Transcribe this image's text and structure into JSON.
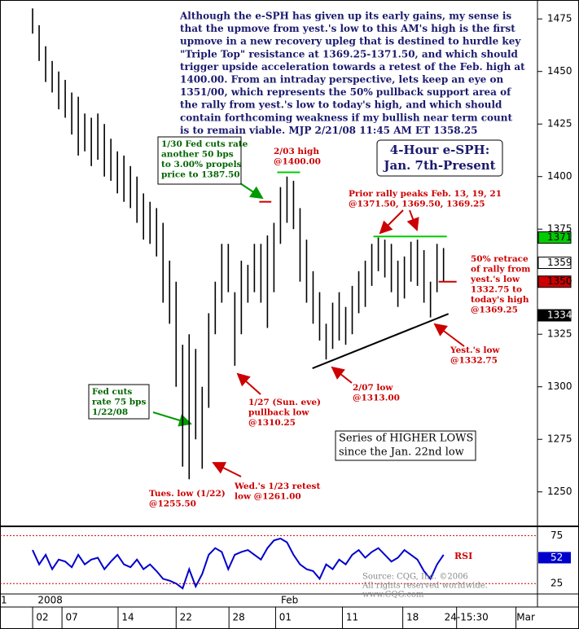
{
  "title_box": [
    "4-Hour e-SPH:",
    "Jan. 7th-Present"
  ],
  "commentary": [
    "Although the e-SPH has given up its early gains, my sense is",
    "that the upmove from yest.'s low to this AM's high is the first",
    "upmove in a new recovery upleg that is destined to hurdle key",
    "\"Triple Top\" resistance at 1369.25-1371.50, and which should",
    "trigger upside acceleration towards a retest of the Feb. high at",
    "1400.00. From an intraday perspective, lets keep an eye on",
    "1351/00, which represents the 50% pullback support area of",
    "the rally from yest.'s low to today's high, and which should",
    "contain forthcoming weakness if my bullish near term count",
    "is to remain viable.  MJP  2/21/08 11:45 AM ET 1358.25"
  ],
  "annotations": [
    {
      "color": "#006600",
      "lines": [
        "1/30 Fed cuts rate",
        "another 50 bps",
        "to 3.00% propels",
        "price to 1387.50"
      ]
    },
    {
      "color": "#cc0000",
      "lines": [
        "2/03 high",
        "@1400.00"
      ]
    },
    {
      "color": "#cc0000",
      "lines": [
        "Prior rally peaks Feb. 13, 19, 21",
        "@1371.50, 1369.50, 1369.25"
      ]
    },
    {
      "color": "#cc0000",
      "lines": [
        "50% retrace",
        "of rally from",
        "yest.'s low",
        "1332.75 to",
        "today's high",
        "@1369.25"
      ]
    },
    {
      "color": "#cc0000",
      "lines": [
        "Yest.'s low",
        "@1332.75"
      ]
    },
    {
      "color": "#cc0000",
      "lines": [
        "2/07 low",
        "@1313.00"
      ]
    },
    {
      "color": "#cc0000",
      "lines": [
        "1/27 (Sun. eve)",
        "pullback low",
        "@1310.25"
      ]
    },
    {
      "color": "#006600",
      "lines": [
        "Fed cuts",
        "rate 75 bps",
        "1/22/08"
      ]
    },
    {
      "color": "#cc0000",
      "lines": [
        "Wed.'s 1/23 retest",
        "low @1261.00"
      ]
    },
    {
      "color": "#cc0000",
      "lines": [
        "Tues. low (1/22)",
        "@1255.50"
      ]
    },
    {
      "color": "#000000",
      "lines": [
        "Series of HIGHER LOWS",
        "since the Jan. 22nd low"
      ]
    }
  ],
  "copyright": [
    "Source: CQG, Inc. ©2006",
    "All rights reserved worldwide.",
    "www.CQG.com"
  ],
  "chart_data": {
    "type": "hilo",
    "color": "#000000",
    "high": [
      1480,
      1472,
      1462,
      1455,
      1450,
      1446,
      1440,
      1438,
      1430,
      1428,
      1430,
      1425,
      1418,
      1412,
      1410,
      1405,
      1400,
      1392,
      1388,
      1385,
      1378,
      1360,
      1350,
      1320,
      1325,
      1318,
      1300,
      1335,
      1350,
      1368,
      1368,
      1345,
      1360,
      1358,
      1368,
      1368,
      1372,
      1378,
      1395,
      1400,
      1398,
      1385,
      1370,
      1355,
      1345,
      1330,
      1340,
      1345,
      1338,
      1348,
      1355,
      1360,
      1368,
      1371,
      1370,
      1368,
      1360,
      1362,
      1369,
      1370,
      1365,
      1350,
      1368,
      1366
    ],
    "low": [
      1468,
      1455,
      1445,
      1440,
      1432,
      1428,
      1420,
      1410,
      1412,
      1405,
      1408,
      1400,
      1398,
      1392,
      1388,
      1385,
      1378,
      1370,
      1368,
      1362,
      1340,
      1330,
      1300,
      1262,
      1256,
      1275,
      1261,
      1290,
      1325,
      1340,
      1345,
      1310,
      1325,
      1340,
      1345,
      1340,
      1328,
      1345,
      1368,
      1378,
      1375,
      1350,
      1340,
      1330,
      1322,
      1313,
      1318,
      1322,
      1320,
      1325,
      1335,
      1338,
      1348,
      1355,
      1352,
      1345,
      1338,
      1342,
      1350,
      1348,
      1340,
      1333,
      1345,
      1350
    ],
    "ylim": [
      1234,
      1484
    ],
    "yticks": [
      1250,
      1275,
      1300,
      1325,
      1350,
      1375,
      1400,
      1425,
      1450,
      1475
    ],
    "xlim": [
      -5,
      77.4
    ],
    "xticks": [
      {
        "value": 1.5,
        "label": "02"
      },
      {
        "value": 6,
        "label": "07"
      },
      {
        "value": 14.6,
        "label": "14"
      },
      {
        "value": 23.5,
        "label": "22"
      },
      {
        "value": 31.6,
        "label": "28"
      },
      {
        "value": 38.75,
        "label": "01"
      },
      {
        "value": 49,
        "label": "11"
      },
      {
        "value": 58.25,
        "label": "18"
      },
      {
        "value": 66.5,
        "label": "24-15:30"
      },
      {
        "value": 75.6,
        "label": "Mar"
      }
    ],
    "month_labels": [
      {
        "value": -4.4,
        "label": "1"
      },
      {
        "value": 2.7,
        "label": "2008"
      },
      {
        "value": 39.4,
        "label": "Feb"
      }
    ],
    "overlays": [
      {
        "color": "#00cc00",
        "x": [
          37.5,
          41
        ],
        "values": [
          1402,
          1402
        ]
      },
      {
        "color": "#cc0000",
        "x": [
          34.75,
          36.6
        ],
        "values": [
          1388,
          1388
        ]
      },
      {
        "color": "#00cc00",
        "x": [
          52.25,
          63.5
        ],
        "values": [
          1371.5,
          1371.5
        ]
      },
      {
        "color": "#cc0000",
        "x": [
          62.25,
          65
        ],
        "values": [
          1350,
          1350
        ]
      },
      {
        "color": "#000000",
        "x": [
          42.9,
          63.75
        ],
        "values": [
          1308.8,
          1334.7
        ]
      }
    ],
    "price_flags": [
      {
        "value": 1371,
        "color": "#00cc00"
      },
      {
        "value": 1359,
        "color": "#ffffff"
      },
      {
        "value": 1350,
        "color": "#cc0000"
      },
      {
        "value": 1334,
        "color": "#000000"
      }
    ]
  },
  "rsi": {
    "label": "RSI",
    "color": "#0000cc",
    "values": [
      60,
      45,
      55,
      40,
      50,
      48,
      42,
      55,
      45,
      50,
      52,
      40,
      48,
      55,
      45,
      42,
      50,
      40,
      45,
      38,
      30,
      28,
      25,
      20,
      40,
      22,
      35,
      55,
      62,
      58,
      40,
      55,
      58,
      60,
      55,
      50,
      62,
      70,
      72,
      68,
      55,
      45,
      40,
      38,
      30,
      45,
      40,
      50,
      45,
      55,
      60,
      52,
      58,
      62,
      55,
      48,
      52,
      60,
      55,
      50,
      38,
      30,
      45,
      55
    ],
    "ylim": [
      15,
      83
    ],
    "yticks": [
      25,
      75
    ],
    "current": 52
  }
}
